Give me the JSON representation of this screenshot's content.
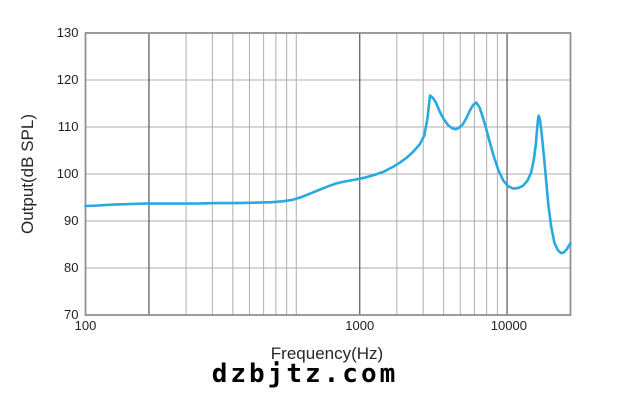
{
  "watermark": "dzbjtz.com",
  "colors": {
    "curve": "#29a9e0",
    "grid_light": "#aeaeae",
    "grid_dark": "#636363",
    "spine": "#919191",
    "text": "#1f1f1f",
    "background": "#ffffff"
  },
  "chart_data": {
    "type": "line",
    "title": "",
    "xlabel": "Frequency(Hz)",
    "ylabel": "Output(dB SPL)",
    "x_scale": "log",
    "x_range": [
      100,
      20000
    ],
    "y_range": [
      70,
      130
    ],
    "grid": true,
    "legend": "none",
    "y_ticks": [
      130,
      120,
      110,
      100,
      90,
      80,
      70
    ],
    "x_tick_labels": [
      {
        "text": "100",
        "f": 100
      },
      {
        "text": "1000",
        "f": 2000
      },
      {
        "text": "10000",
        "f": 10200
      }
    ],
    "x_gridlines_light_f": [
      300,
      400,
      500,
      600,
      700,
      800,
      900,
      1000,
      3000,
      4000,
      5000,
      6000,
      7000,
      8000,
      9000
    ],
    "x_gridlines_dark_f": [
      200,
      2000,
      10000
    ],
    "series": [
      {
        "name": "frequency-response",
        "color": "#29a9e0",
        "points": [
          [
            100,
            93.2
          ],
          [
            115,
            93.3
          ],
          [
            135,
            93.5
          ],
          [
            160,
            93.6
          ],
          [
            190,
            93.7
          ],
          [
            230,
            93.7
          ],
          [
            280,
            93.7
          ],
          [
            340,
            93.7
          ],
          [
            420,
            93.8
          ],
          [
            520,
            93.8
          ],
          [
            640,
            93.9
          ],
          [
            760,
            94.0
          ],
          [
            860,
            94.2
          ],
          [
            960,
            94.5
          ],
          [
            1060,
            95.1
          ],
          [
            1160,
            95.8
          ],
          [
            1280,
            96.6
          ],
          [
            1400,
            97.3
          ],
          [
            1550,
            98.0
          ],
          [
            1700,
            98.4
          ],
          [
            1850,
            98.7
          ],
          [
            2000,
            99.0
          ],
          [
            2150,
            99.3
          ],
          [
            2350,
            99.8
          ],
          [
            2600,
            100.5
          ],
          [
            2850,
            101.4
          ],
          [
            3100,
            102.4
          ],
          [
            3350,
            103.5
          ],
          [
            3600,
            104.8
          ],
          [
            3850,
            106.3
          ],
          [
            4050,
            108.2
          ],
          [
            4200,
            112.0
          ],
          [
            4310,
            116.7
          ],
          [
            4450,
            116.2
          ],
          [
            4600,
            115.2
          ],
          [
            4800,
            113.2
          ],
          [
            5000,
            111.7
          ],
          [
            5250,
            110.4
          ],
          [
            5500,
            109.7
          ],
          [
            5700,
            109.5
          ],
          [
            5900,
            109.8
          ],
          [
            6150,
            110.5
          ],
          [
            6400,
            111.8
          ],
          [
            6650,
            113.4
          ],
          [
            6900,
            114.7
          ],
          [
            7150,
            115.2
          ],
          [
            7400,
            114.2
          ],
          [
            7650,
            112.3
          ],
          [
            7950,
            109.7
          ],
          [
            8300,
            106.6
          ],
          [
            8700,
            103.4
          ],
          [
            9100,
            100.8
          ],
          [
            9600,
            98.6
          ],
          [
            10100,
            97.4
          ],
          [
            10700,
            96.9
          ],
          [
            11300,
            97.0
          ],
          [
            11900,
            97.5
          ],
          [
            12500,
            98.6
          ],
          [
            13000,
            100.3
          ],
          [
            13400,
            103.0
          ],
          [
            13700,
            106.5
          ],
          [
            13900,
            109.8
          ],
          [
            14050,
            112.0
          ],
          [
            14150,
            112.4
          ],
          [
            14350,
            111.3
          ],
          [
            14600,
            108.5
          ],
          [
            14900,
            104.5
          ],
          [
            15300,
            99.0
          ],
          [
            15700,
            93.5
          ],
          [
            16200,
            88.8
          ],
          [
            16800,
            85.3
          ],
          [
            17400,
            83.8
          ],
          [
            18000,
            83.2
          ],
          [
            18600,
            83.3
          ],
          [
            19200,
            84.0
          ],
          [
            20000,
            85.3
          ]
        ]
      }
    ]
  }
}
